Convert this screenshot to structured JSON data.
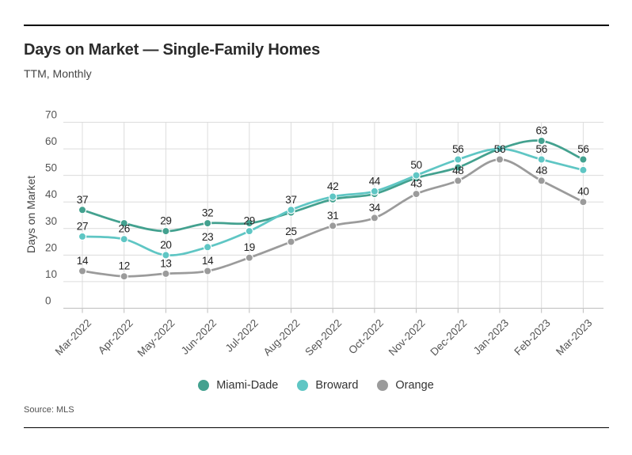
{
  "header": {
    "title": "Days on Market — Single-Family Homes",
    "subtitle": "TTM, Monthly"
  },
  "footer": {
    "source": "Source: MLS"
  },
  "chart_data": {
    "type": "line",
    "title": "Days on Market — Single-Family Homes",
    "subtitle": "TTM, Monthly",
    "xlabel": "",
    "ylabel": "Days on Market",
    "ylim": [
      0,
      70
    ],
    "ytick_step": 10,
    "grid": true,
    "legend_position": "bottom",
    "x_tick_rotation": -45,
    "categories": [
      "Mar-2022",
      "Apr-2022",
      "May-2022",
      "Jun-2022",
      "Jul-2022",
      "Aug-2022",
      "Sep-2022",
      "Oct-2022",
      "Nov-2022",
      "Dec-2022",
      "Jan-2023",
      "Feb-2023",
      "Mar-2023"
    ],
    "series": [
      {
        "name": "Miami-Dade",
        "color": "#43A18F",
        "values": [
          37,
          32,
          29,
          32,
          32,
          36,
          41,
          43,
          49,
          53,
          60,
          63,
          56
        ],
        "point_labels": [
          37,
          null,
          29,
          32,
          null,
          null,
          null,
          null,
          null,
          null,
          null,
          63,
          56
        ]
      },
      {
        "name": "Broward",
        "color": "#5FC6C4",
        "values": [
          27,
          26,
          20,
          23,
          29,
          37,
          42,
          44,
          50,
          56,
          60,
          56,
          52
        ],
        "point_labels": [
          27,
          26,
          20,
          23,
          29,
          37,
          42,
          44,
          50,
          56,
          null,
          56,
          null
        ]
      },
      {
        "name": "Orange",
        "color": "#9B9B9B",
        "values": [
          14,
          12,
          13,
          14,
          19,
          25,
          31,
          34,
          43,
          48,
          56,
          48,
          40
        ],
        "point_labels": [
          14,
          12,
          13,
          14,
          19,
          25,
          31,
          34,
          43,
          48,
          56,
          48,
          40
        ]
      }
    ]
  }
}
